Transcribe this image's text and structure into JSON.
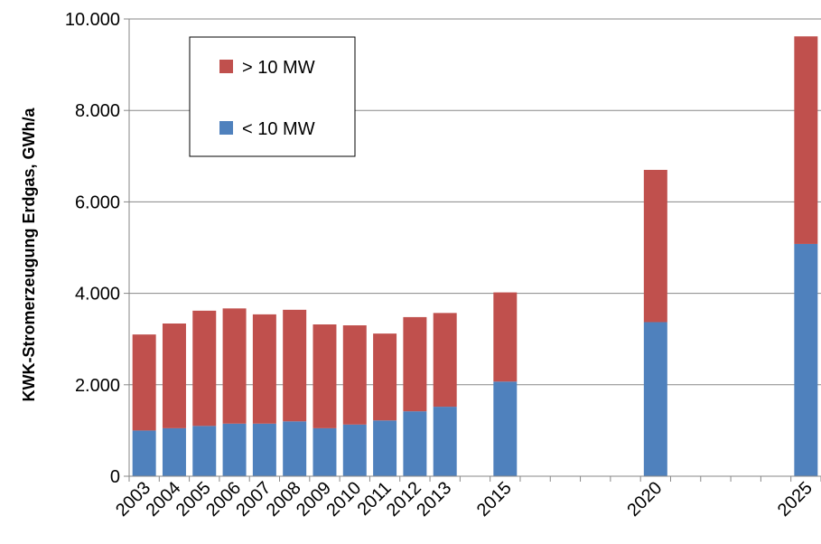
{
  "chart_data": {
    "type": "bar",
    "stacked": true,
    "ylabel": "KWK-Stromerzeugung Erdgas, GWh/a",
    "ylim": [
      0,
      10000
    ],
    "yticks": [
      0,
      2000,
      4000,
      6000,
      8000,
      10000
    ],
    "ytick_labels": [
      "0",
      "2.000",
      "4.000",
      "6.000",
      "8.000",
      "10.000"
    ],
    "grid": true,
    "x_slots": [
      "2003",
      "2004",
      "2005",
      "2006",
      "2007",
      "2008",
      "2009",
      "2010",
      "2011",
      "2012",
      "2013",
      "2014",
      "2015",
      "2016",
      "2017",
      "2018",
      "2019",
      "2020",
      "2021",
      "2022",
      "2023",
      "2024",
      "2025"
    ],
    "categories": [
      "2003",
      "2004",
      "2005",
      "2006",
      "2007",
      "2008",
      "2009",
      "2010",
      "2011",
      "2012",
      "2013",
      "2015",
      "2020",
      "2025"
    ],
    "series": [
      {
        "name": "< 10 MW",
        "color": "#4F81BD",
        "values": [
          1000,
          1050,
          1100,
          1150,
          1150,
          1200,
          1050,
          1130,
          1220,
          1420,
          1520,
          2070,
          3370,
          5080
        ]
      },
      {
        "name": "> 10 MW",
        "color": "#C0504D",
        "values": [
          2100,
          2290,
          2520,
          2520,
          2390,
          2440,
          2270,
          2170,
          1900,
          2060,
          2050,
          1950,
          3330,
          4540
        ]
      }
    ],
    "legend": {
      "position": "top-left",
      "order": [
        "> 10 MW",
        "< 10 MW"
      ]
    }
  }
}
